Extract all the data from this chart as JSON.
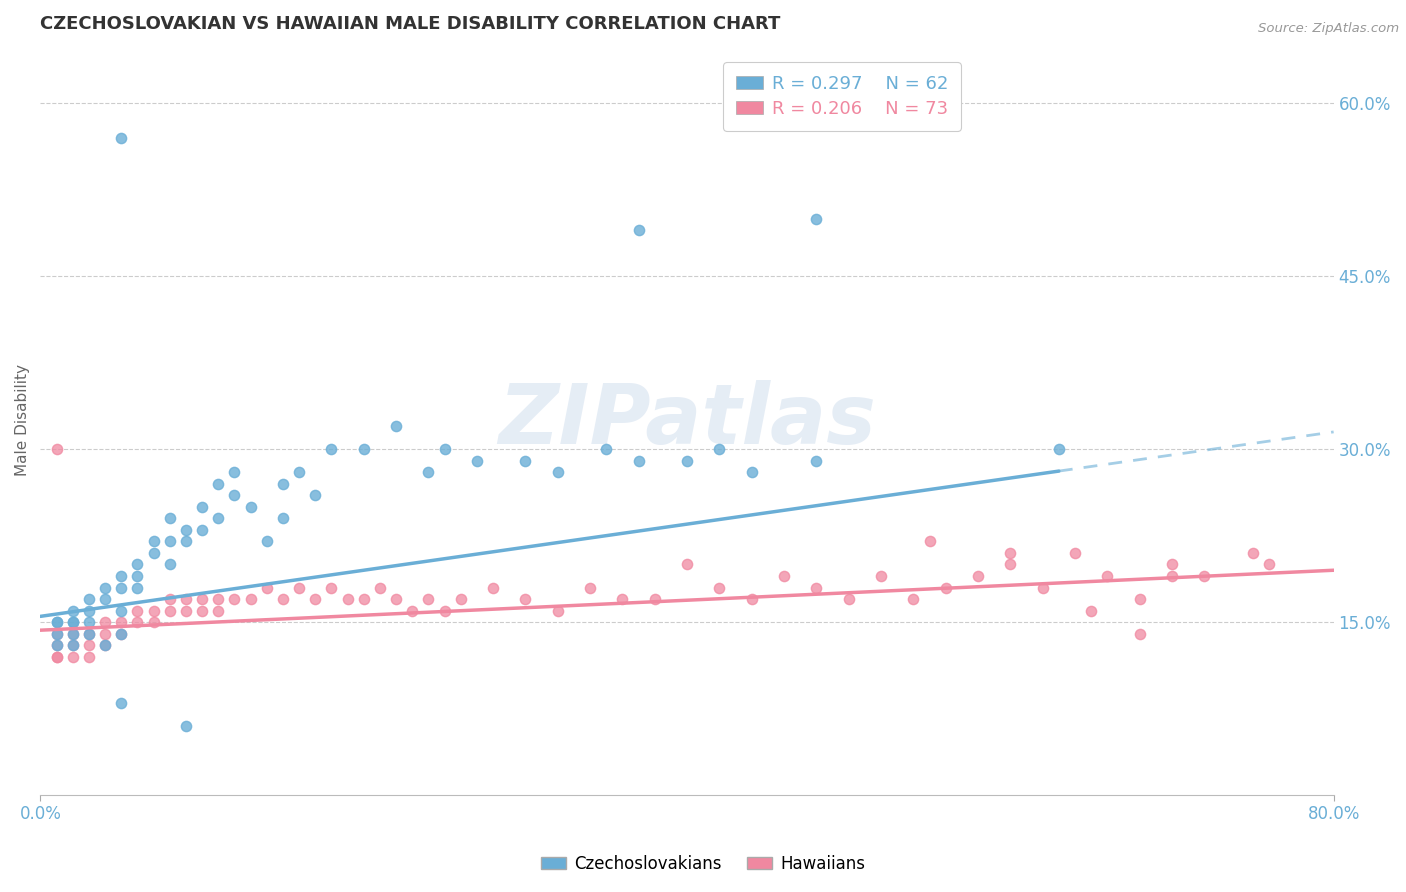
{
  "title": "CZECHOSLOVAKIAN VS HAWAIIAN MALE DISABILITY CORRELATION CHART",
  "source": "Source: ZipAtlas.com",
  "ylabel": "Male Disability",
  "xlim": [
    0.0,
    0.8
  ],
  "ylim": [
    0.0,
    0.65
  ],
  "yticks_right": [
    0.15,
    0.3,
    0.45,
    0.6
  ],
  "yticklabels_right": [
    "15.0%",
    "30.0%",
    "45.0%",
    "60.0%"
  ],
  "grid_yticks": [
    0.15,
    0.3,
    0.45,
    0.6
  ],
  "czech_color": "#6aaed6",
  "hawaiian_color": "#f088a0",
  "czech_R": 0.297,
  "czech_N": 62,
  "hawaiian_R": 0.206,
  "hawaiian_N": 73,
  "watermark": "ZIPatlas",
  "watermark_color": "#aac4e0",
  "czech_trend_y_start": 0.155,
  "czech_trend_y_end": 0.315,
  "czech_trend_solid_x_end": 0.63,
  "hawaiian_trend_y_start": 0.143,
  "hawaiian_trend_y_end": 0.195,
  "background_color": "#ffffff",
  "title_color": "#333333",
  "axis_label_color": "#666666",
  "tick_label_color": "#6aaed6",
  "czech_x": [
    0.01,
    0.01,
    0.01,
    0.01,
    0.02,
    0.02,
    0.02,
    0.02,
    0.02,
    0.03,
    0.03,
    0.03,
    0.03,
    0.04,
    0.04,
    0.04,
    0.05,
    0.05,
    0.05,
    0.05,
    0.06,
    0.06,
    0.06,
    0.07,
    0.07,
    0.08,
    0.08,
    0.08,
    0.09,
    0.09,
    0.1,
    0.1,
    0.11,
    0.11,
    0.12,
    0.12,
    0.13,
    0.14,
    0.15,
    0.15,
    0.16,
    0.17,
    0.18,
    0.2,
    0.22,
    0.24,
    0.25,
    0.27,
    0.3,
    0.32,
    0.35,
    0.37,
    0.4,
    0.42,
    0.44,
    0.48,
    0.05,
    0.37,
    0.48,
    0.63,
    0.05,
    0.09
  ],
  "czech_y": [
    0.15,
    0.15,
    0.14,
    0.13,
    0.16,
    0.15,
    0.14,
    0.13,
    0.15,
    0.17,
    0.16,
    0.15,
    0.14,
    0.18,
    0.17,
    0.13,
    0.19,
    0.18,
    0.16,
    0.14,
    0.2,
    0.19,
    0.18,
    0.22,
    0.21,
    0.24,
    0.22,
    0.2,
    0.23,
    0.22,
    0.25,
    0.23,
    0.27,
    0.24,
    0.28,
    0.26,
    0.25,
    0.22,
    0.27,
    0.24,
    0.28,
    0.26,
    0.3,
    0.3,
    0.32,
    0.28,
    0.3,
    0.29,
    0.29,
    0.28,
    0.3,
    0.29,
    0.29,
    0.3,
    0.28,
    0.29,
    0.57,
    0.49,
    0.5,
    0.3,
    0.08,
    0.06
  ],
  "hawaiian_x": [
    0.01,
    0.01,
    0.01,
    0.01,
    0.02,
    0.02,
    0.02,
    0.03,
    0.03,
    0.03,
    0.04,
    0.04,
    0.04,
    0.05,
    0.05,
    0.06,
    0.06,
    0.07,
    0.07,
    0.08,
    0.08,
    0.09,
    0.09,
    0.1,
    0.1,
    0.11,
    0.11,
    0.12,
    0.13,
    0.14,
    0.15,
    0.16,
    0.17,
    0.18,
    0.19,
    0.2,
    0.21,
    0.22,
    0.23,
    0.24,
    0.25,
    0.26,
    0.28,
    0.3,
    0.32,
    0.34,
    0.36,
    0.38,
    0.4,
    0.42,
    0.44,
    0.46,
    0.48,
    0.5,
    0.52,
    0.54,
    0.56,
    0.58,
    0.6,
    0.62,
    0.64,
    0.66,
    0.68,
    0.7,
    0.55,
    0.6,
    0.7,
    0.72,
    0.65,
    0.68,
    0.75,
    0.76,
    0.01
  ],
  "hawaiian_y": [
    0.13,
    0.12,
    0.12,
    0.14,
    0.14,
    0.13,
    0.12,
    0.14,
    0.13,
    0.12,
    0.15,
    0.14,
    0.13,
    0.15,
    0.14,
    0.16,
    0.15,
    0.16,
    0.15,
    0.17,
    0.16,
    0.17,
    0.16,
    0.17,
    0.16,
    0.17,
    0.16,
    0.17,
    0.17,
    0.18,
    0.17,
    0.18,
    0.17,
    0.18,
    0.17,
    0.17,
    0.18,
    0.17,
    0.16,
    0.17,
    0.16,
    0.17,
    0.18,
    0.17,
    0.16,
    0.18,
    0.17,
    0.17,
    0.2,
    0.18,
    0.17,
    0.19,
    0.18,
    0.17,
    0.19,
    0.17,
    0.18,
    0.19,
    0.2,
    0.18,
    0.21,
    0.19,
    0.17,
    0.19,
    0.22,
    0.21,
    0.2,
    0.19,
    0.16,
    0.14,
    0.21,
    0.2,
    0.3
  ]
}
